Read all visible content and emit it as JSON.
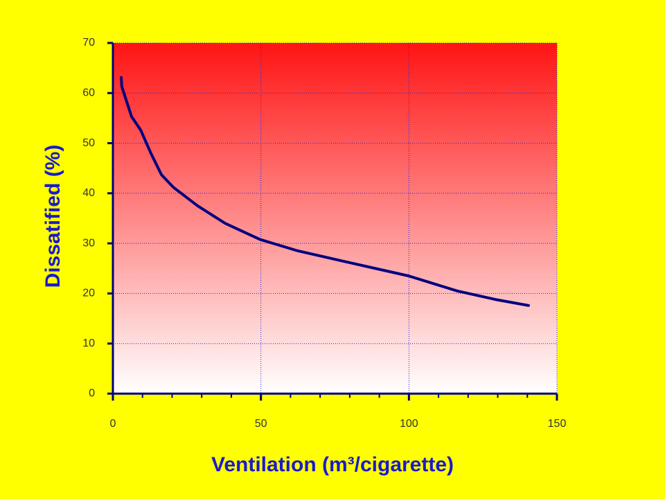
{
  "chart_data": {
    "type": "line",
    "x_label": "Ventilation  (m³/cigarette)",
    "y_label": "Dissatified  (%)",
    "series": [
      {
        "color": "#000080",
        "x": [
          2.8,
          3,
          6.3,
          9.4,
          12.9,
          16.4,
          20.4,
          28.6,
          37.9,
          49.6,
          62.5,
          78.9,
          99.9,
          116.3,
          129.2,
          140.4
        ],
        "values": [
          63.1,
          61.3,
          55.3,
          52.6,
          47.9,
          43.7,
          41.2,
          37.5,
          34.0,
          30.8,
          28.5,
          26.3,
          23.5,
          20.5,
          18.8,
          17.6
        ]
      }
    ],
    "xlim": [
      0,
      150
    ],
    "xticks": [
      0,
      50,
      100,
      150
    ],
    "xminorticks": [
      10,
      20,
      30,
      40,
      60,
      70,
      80,
      90,
      110,
      120,
      130,
      140
    ],
    "ylim": [
      0,
      70
    ],
    "yticks": [
      0,
      10,
      20,
      30,
      40,
      50,
      60,
      70
    ],
    "grid": true
  }
}
